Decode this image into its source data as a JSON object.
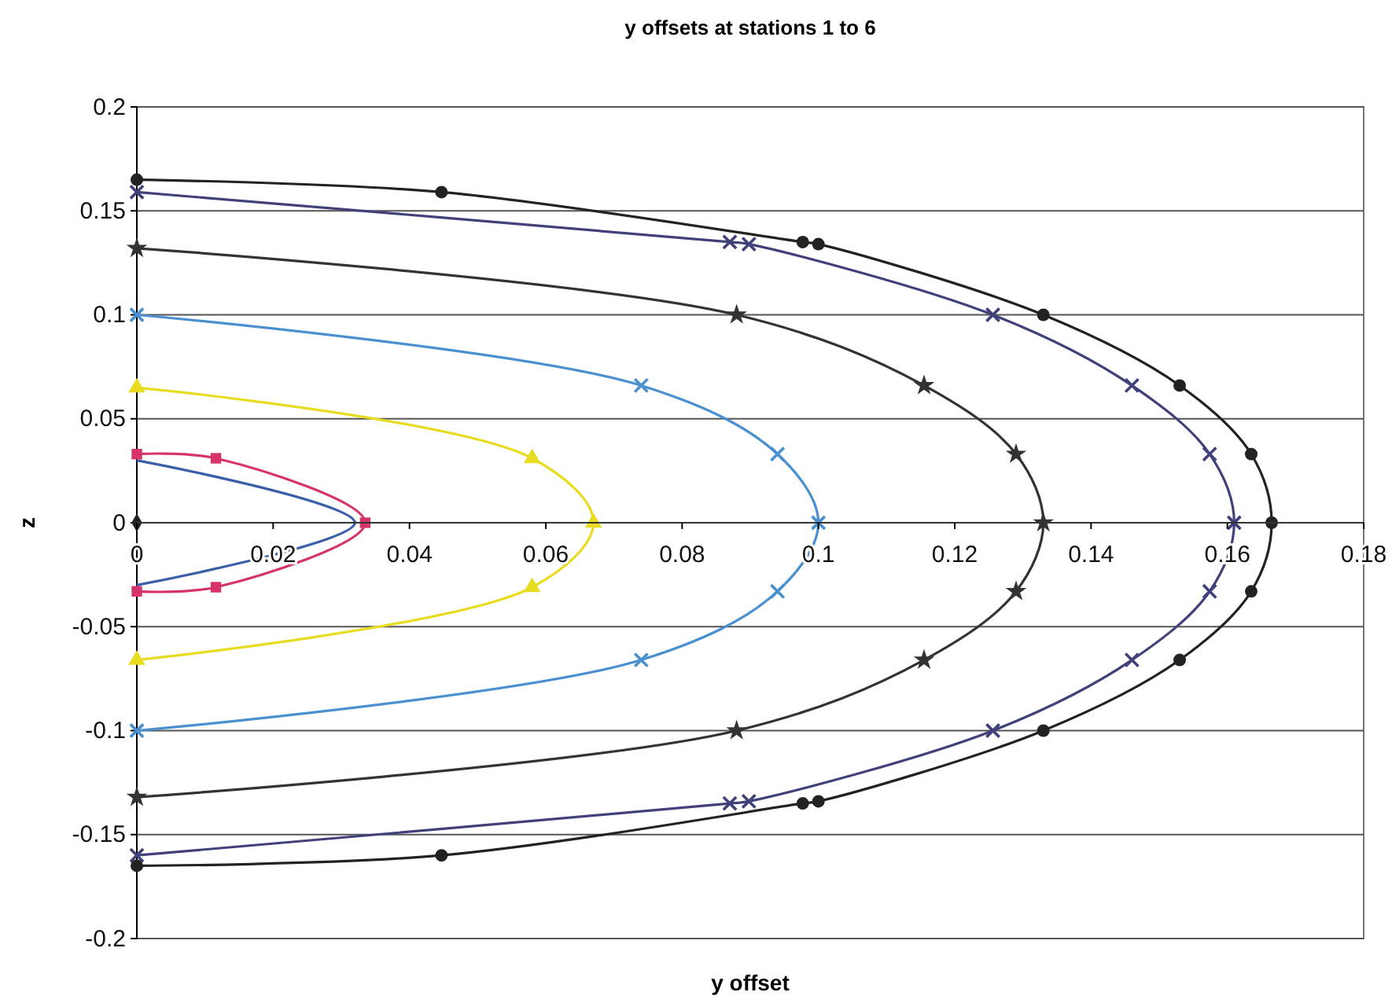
{
  "chart_data": {
    "type": "line",
    "title": "y offsets at stations 1 to 6",
    "xlabel": "y offset",
    "ylabel": "z",
    "xlim": [
      0,
      0.18
    ],
    "ylim": [
      -0.2,
      0.2
    ],
    "xticks": [
      0,
      0.02,
      0.04,
      0.06,
      0.08,
      0.1,
      0.12,
      0.14,
      0.16,
      0.18
    ],
    "yticks": [
      -0.2,
      -0.15,
      -0.1,
      -0.05,
      0,
      0.05,
      0.1,
      0.15,
      0.2
    ],
    "grid": "y",
    "line_style": "solid",
    "series": [
      {
        "color": "#222222",
        "type": "scatter",
        "marker": "diamond",
        "x": [
          0
        ],
        "values": [
          0
        ]
      },
      {
        "color": "#3a5fa8",
        "marker": "none",
        "x": [
          0,
          0.032,
          0
        ],
        "values": [
          0.03,
          0,
          -0.03
        ]
      },
      {
        "color": "#d6336c",
        "marker": "square",
        "x": [
          0,
          0.0116,
          0.0335,
          0.0116,
          0
        ],
        "values": [
          0.033,
          0.031,
          0,
          -0.031,
          -0.033
        ]
      },
      {
        "color": "#e8dc20",
        "marker": "triangle",
        "x": [
          0,
          0.058,
          0.067,
          0.058,
          0
        ],
        "values": [
          0.065,
          0.031,
          0,
          -0.031,
          -0.066
        ]
      },
      {
        "color": "#4a90d0",
        "marker": "cross",
        "x": [
          0,
          0.074,
          0.094,
          0.1,
          0.094,
          0.074,
          0
        ],
        "values": [
          0.1,
          0.066,
          0.033,
          0,
          -0.033,
          -0.066,
          -0.1
        ]
      },
      {
        "color": "#333333",
        "marker": "star",
        "x": [
          0,
          0.088,
          0.1155,
          0.129,
          0.133,
          0.129,
          0.1155,
          0.088,
          0
        ],
        "values": [
          0.132,
          0.1,
          0.066,
          0.033,
          0,
          -0.033,
          -0.066,
          -0.1,
          -0.132
        ]
      },
      {
        "color": "#40407a",
        "marker": "cross",
        "x": [
          0,
          0.087,
          0.0898,
          0.1256,
          0.146,
          0.1574,
          0.161,
          0.1574,
          0.146,
          0.1256,
          0.0898,
          0.087,
          0
        ],
        "values": [
          0.159,
          0.135,
          0.134,
          0.1,
          0.066,
          0.033,
          0,
          -0.033,
          -0.066,
          -0.1,
          -0.134,
          -0.135,
          -0.16
        ]
      },
      {
        "color": "#222222",
        "marker": "circle",
        "x": [
          0,
          0.0447,
          0.0977,
          0.1,
          0.133,
          0.153,
          0.1635,
          0.1665,
          0.1635,
          0.153,
          0.133,
          0.1,
          0.0977,
          0.0447,
          0
        ],
        "values": [
          0.165,
          0.159,
          0.135,
          0.134,
          0.1,
          0.066,
          0.033,
          0,
          -0.033,
          -0.066,
          -0.1,
          -0.134,
          -0.135,
          -0.16,
          -0.165
        ]
      }
    ]
  }
}
